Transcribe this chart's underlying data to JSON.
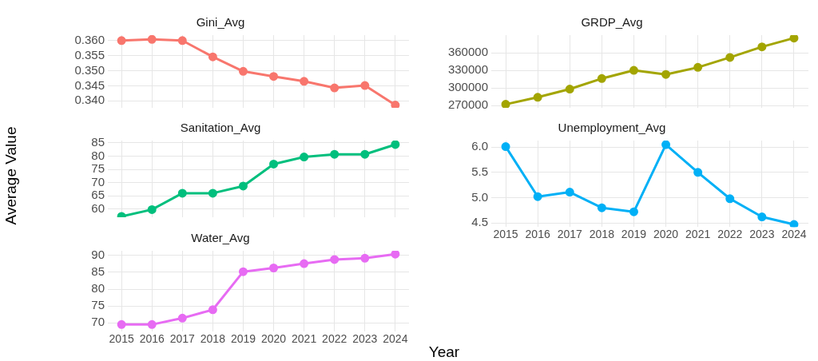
{
  "chart_data": [
    {
      "type": "line",
      "title": "Gini_Avg",
      "x": [
        2015,
        2016,
        2017,
        2018,
        2019,
        2020,
        2021,
        2022,
        2023,
        2024
      ],
      "color": "#f8766d",
      "values": [
        0.36,
        0.3604,
        0.36,
        0.3546,
        0.3498,
        0.3481,
        0.3465,
        0.3443,
        0.3451,
        0.3386
      ],
      "xlim": [
        2014.55,
        2024.45
      ],
      "xticks": [
        2015,
        2016,
        2017,
        2018,
        2019,
        2020,
        2021,
        2022,
        2023,
        2024
      ],
      "ylim": [
        0.3377,
        0.3618
      ],
      "yticks": [
        {
          "value": 0.34,
          "label": "0.340"
        },
        {
          "value": 0.345,
          "label": "0.345"
        },
        {
          "value": 0.35,
          "label": "0.350"
        },
        {
          "value": 0.355,
          "label": "0.355"
        },
        {
          "value": 0.36,
          "label": "0.360"
        }
      ],
      "grid": true,
      "marker": "circle",
      "tick_labels": "y"
    },
    {
      "type": "line",
      "title": "GRDP_Avg",
      "x": [
        2015,
        2016,
        2017,
        2018,
        2019,
        2020,
        2021,
        2022,
        2023,
        2024
      ],
      "color": "#a3a500",
      "values": [
        272000,
        284000,
        298000,
        316000,
        330000,
        323000,
        335000,
        352000,
        370000,
        385000
      ],
      "xlim": [
        2014.55,
        2024.45
      ],
      "xticks": [
        2015,
        2016,
        2017,
        2018,
        2019,
        2020,
        2021,
        2022,
        2023,
        2024
      ],
      "ylim": [
        266000,
        390000
      ],
      "yticks": [
        270000,
        300000,
        330000,
        360000
      ],
      "grid": true,
      "marker": "circle",
      "tick_labels": "y"
    },
    {
      "type": "line",
      "title": "Sanitation_Avg",
      "ylabel": "Average Value",
      "x": [
        2015,
        2016,
        2017,
        2018,
        2019,
        2020,
        2021,
        2022,
        2023,
        2024
      ],
      "color": "#00bf7d",
      "values": [
        57.2,
        59.8,
        66.0,
        66.0,
        68.7,
        77.0,
        79.7,
        80.7,
        80.7,
        84.4
      ],
      "xlim": [
        2014.55,
        2024.45
      ],
      "xticks": [
        2015,
        2016,
        2017,
        2018,
        2019,
        2020,
        2021,
        2022,
        2023,
        2024
      ],
      "ylim": [
        56.9,
        85.9
      ],
      "yticks": [
        60,
        65,
        70,
        75,
        80,
        85
      ],
      "grid": true,
      "marker": "circle",
      "tick_labels": "y"
    },
    {
      "type": "line",
      "title": "Unemployment_Avg",
      "x": [
        2015,
        2016,
        2017,
        2018,
        2019,
        2020,
        2021,
        2022,
        2023,
        2024
      ],
      "color": "#00b0f6",
      "values": [
        6.01,
        5.02,
        5.11,
        4.8,
        4.72,
        6.05,
        5.5,
        4.98,
        4.62,
        4.47
      ],
      "xlim": [
        2014.55,
        2024.45
      ],
      "xticks": [
        2015,
        2016,
        2017,
        2018,
        2019,
        2020,
        2021,
        2022,
        2023,
        2024
      ],
      "ylim": [
        4.42,
        6.13
      ],
      "yticks": [
        {
          "value": 4.5,
          "label": "4.5"
        },
        {
          "value": 5,
          "label": "5.0"
        },
        {
          "value": 5.5,
          "label": "5.5"
        },
        {
          "value": 6,
          "label": "6.0"
        }
      ],
      "grid": true,
      "marker": "circle"
    },
    {
      "type": "line",
      "title": "Water_Avg",
      "xlabel": "Year",
      "x": [
        2015,
        2016,
        2017,
        2018,
        2019,
        2020,
        2021,
        2022,
        2023,
        2024
      ],
      "color": "#e76bf3",
      "values": [
        69.5,
        69.5,
        71.4,
        73.9,
        85.2,
        86.3,
        87.6,
        88.8,
        89.2,
        90.4
      ],
      "xlim": [
        2014.55,
        2024.45
      ],
      "xticks": [
        2015,
        2016,
        2017,
        2018,
        2019,
        2020,
        2021,
        2022,
        2023,
        2024
      ],
      "ylim": [
        67.4,
        91.4
      ],
      "yticks": [
        70,
        75,
        80,
        85,
        90
      ],
      "grid": true,
      "marker": "circle"
    }
  ]
}
